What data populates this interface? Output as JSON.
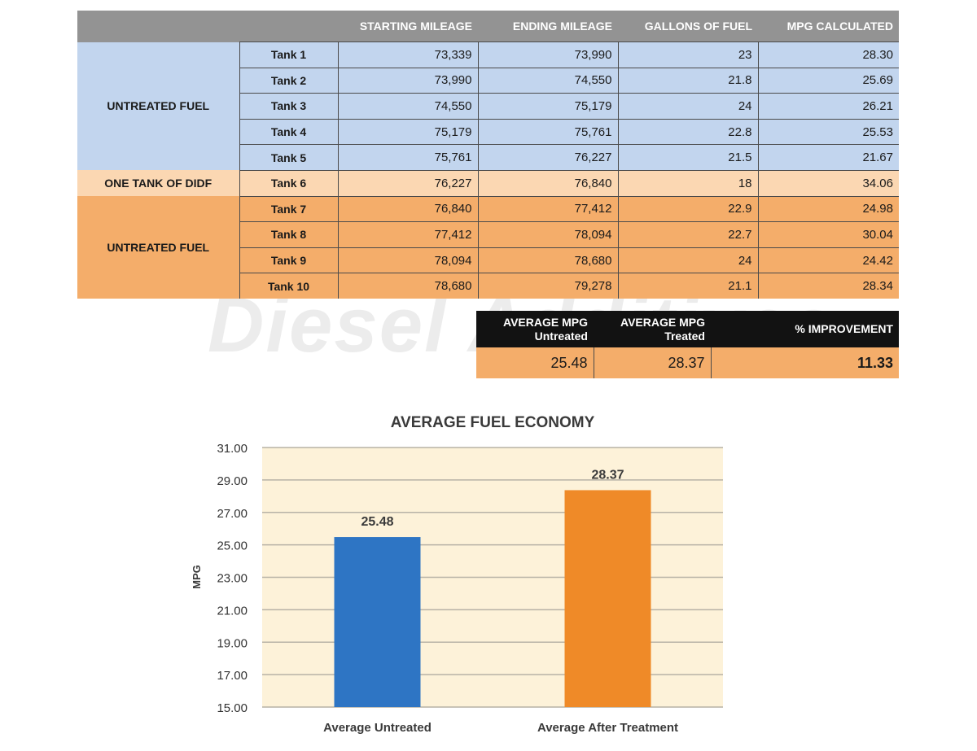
{
  "watermark": "Diesel Additives",
  "table": {
    "headers": [
      "",
      "",
      "STARTING MILEAGE",
      "ENDING MILEAGE",
      "GALLONS OF FUEL",
      "MPG CALCULATED"
    ],
    "groups": [
      "UNTREATED FUEL",
      "ONE TANK OF DIDF",
      "UNTREATED FUEL"
    ],
    "rows": [
      {
        "tank": "Tank 1",
        "start": "73,339",
        "end": "73,990",
        "gallons": "23",
        "mpg": "28.30"
      },
      {
        "tank": "Tank 2",
        "start": "73,990",
        "end": "74,550",
        "gallons": "21.8",
        "mpg": "25.69"
      },
      {
        "tank": "Tank 3",
        "start": "74,550",
        "end": "75,179",
        "gallons": "24",
        "mpg": "26.21"
      },
      {
        "tank": "Tank 4",
        "start": "75,179",
        "end": "75,761",
        "gallons": "22.8",
        "mpg": "25.53"
      },
      {
        "tank": "Tank 5",
        "start": "75,761",
        "end": "76,227",
        "gallons": "21.5",
        "mpg": "21.67"
      },
      {
        "tank": "Tank 6",
        "start": "76,227",
        "end": "76,840",
        "gallons": "18",
        "mpg": "34.06"
      },
      {
        "tank": "Tank 7",
        "start": "76,840",
        "end": "77,412",
        "gallons": "22.9",
        "mpg": "24.98"
      },
      {
        "tank": "Tank 8",
        "start": "77,412",
        "end": "78,094",
        "gallons": "22.7",
        "mpg": "30.04"
      },
      {
        "tank": "Tank 9",
        "start": "78,094",
        "end": "78,680",
        "gallons": "24",
        "mpg": "24.42"
      },
      {
        "tank": "Tank 10",
        "start": "78,680",
        "end": "79,278",
        "gallons": "21.1",
        "mpg": "28.34"
      }
    ]
  },
  "averages": {
    "headers": [
      [
        "AVERAGE MPG",
        "Untreated"
      ],
      [
        "AVERAGE MPG",
        "Treated"
      ],
      [
        "% IMPROVEMENT",
        ""
      ]
    ],
    "values": [
      "25.48",
      "28.37",
      "11.33"
    ]
  },
  "colors": {
    "untreated_rows": "#c2d5ee",
    "didf_row": "#fbd7b2",
    "post_rows": "#f4ad6a",
    "header_gray": "#939393",
    "header_black": "#121212",
    "bar_untreated": "#2e75c4",
    "bar_treated": "#ef8a28",
    "plot_bg": "#fdf2d9"
  },
  "chart_data": {
    "type": "bar",
    "title": "AVERAGE FUEL ECONOMY",
    "xlabel": "",
    "ylabel": "MPG",
    "categories": [
      "Average Untreated",
      "Average After Treatment"
    ],
    "values": [
      25.48,
      28.37
    ],
    "value_labels": [
      "25.48",
      "28.37"
    ],
    "ylim": [
      15,
      31
    ],
    "yticks": [
      "15.00",
      "17.00",
      "19.00",
      "21.00",
      "23.00",
      "25.00",
      "27.00",
      "29.00",
      "31.00"
    ],
    "grid": true,
    "legend": "none"
  }
}
